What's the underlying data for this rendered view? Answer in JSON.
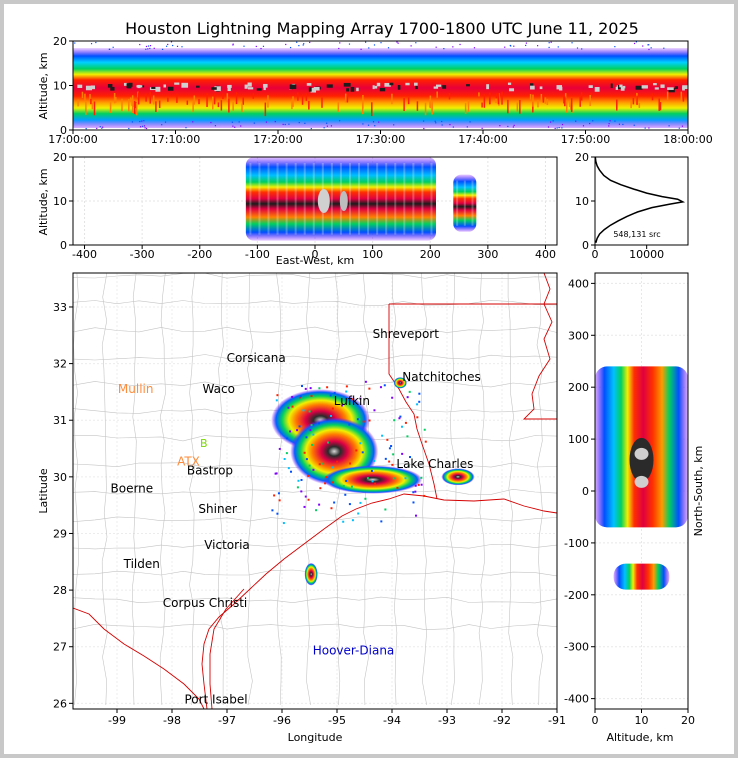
{
  "title": "Houston Lightning Mapping Array 1700-1800 UTC June 11, 2025",
  "colors": {
    "map_state_border": "#d40000",
    "map_county": "#b0b0b0",
    "sites": "#ff8c3c",
    "site_green": "#7ad800",
    "hoover_diana": "#0000cc"
  },
  "chart_data": [
    {
      "type": "heatmap",
      "panel": "altitude-vs-time",
      "ylabel": "Altitude, km",
      "ylim": [
        0,
        20
      ],
      "yticks": [
        "0",
        "10",
        "20"
      ],
      "xlim": [
        "17:00:00",
        "18:00:00"
      ],
      "xticks": [
        "17:00:00",
        "17:10:00",
        "17:20:00",
        "17:30:00",
        "17:40:00",
        "17:50:00",
        "18:00:00"
      ],
      "density_peak_altitude_km": 10
    },
    {
      "type": "heatmap",
      "panel": "altitude-vs-east-west",
      "xlabel": "East-West, km",
      "ylabel": "Altitude, km",
      "xlim": [
        -420,
        420
      ],
      "xticks": [
        "-400",
        "-300",
        "-200",
        "-100",
        "0",
        "100",
        "200",
        "300",
        "400"
      ],
      "ylim": [
        0,
        20
      ],
      "yticks": [
        "0",
        "10",
        "20"
      ],
      "clusters": [
        {
          "x_from": -120,
          "x_to": 210,
          "peak_x": 50,
          "alt_from": 1,
          "alt_to": 20
        },
        {
          "x_from": 240,
          "x_to": 280,
          "peak_x": 260,
          "alt_from": 3,
          "alt_to": 16
        }
      ]
    },
    {
      "type": "line",
      "panel": "altitude-histogram",
      "xlim": [
        0,
        18000
      ],
      "xticks": [
        "0",
        "10000"
      ],
      "ylim": [
        0,
        20
      ],
      "yticks": [
        "0",
        "10",
        "20"
      ],
      "annotation": "548,131 src",
      "points": [
        [
          150,
          0.5
        ],
        [
          400,
          1.5
        ],
        [
          900,
          2.5
        ],
        [
          1800,
          3.5
        ],
        [
          3000,
          4.5
        ],
        [
          4500,
          5.5
        ],
        [
          6200,
          6.5
        ],
        [
          8200,
          7.5
        ],
        [
          11000,
          8.5
        ],
        [
          14500,
          9.3
        ],
        [
          17000,
          9.8
        ],
        [
          16000,
          10.4
        ],
        [
          13000,
          11
        ],
        [
          10000,
          11.8
        ],
        [
          7500,
          12.7
        ],
        [
          5000,
          13.7
        ],
        [
          3000,
          14.7
        ],
        [
          1700,
          15.8
        ],
        [
          900,
          17
        ],
        [
          400,
          18
        ],
        [
          150,
          19
        ],
        [
          60,
          20
        ]
      ]
    },
    {
      "type": "scatter",
      "panel": "plan-view-map",
      "xlabel": "Longitude",
      "ylabel": "Latitude",
      "xlim": [
        -99.8,
        -91
      ],
      "ylim": [
        25.9,
        33.6
      ],
      "xticks": [
        "-99",
        "-98",
        "-97",
        "-96",
        "-95",
        "-94",
        "-93",
        "-92",
        "-91"
      ],
      "yticks": [
        "26",
        "27",
        "28",
        "29",
        "30",
        "31",
        "32",
        "33"
      ],
      "places": [
        {
          "name": "Shreveport",
          "lon": -93.75,
          "lat": 32.52,
          "color": "#000000"
        },
        {
          "name": "Corsicana",
          "lon": -96.47,
          "lat": 32.1,
          "color": "#000000"
        },
        {
          "name": "Natchitoches",
          "lon": -93.1,
          "lat": 31.76,
          "color": "#000000"
        },
        {
          "name": "Mullin",
          "lon": -98.66,
          "lat": 31.55,
          "color": "#ff8c3c"
        },
        {
          "name": "Waco",
          "lon": -97.15,
          "lat": 31.55,
          "color": "#000000"
        },
        {
          "name": "Lufkin",
          "lon": -94.73,
          "lat": 31.34,
          "color": "#000000"
        },
        {
          "name": "ATX",
          "lon": -97.7,
          "lat": 30.27,
          "color": "#ff8c3c"
        },
        {
          "name": "Lake Charles",
          "lon": -93.22,
          "lat": 30.23,
          "color": "#000000"
        },
        {
          "name": "Bastrop",
          "lon": -97.31,
          "lat": 30.11,
          "color": "#000000"
        },
        {
          "name": "Boerne",
          "lon": -98.73,
          "lat": 29.79,
          "color": "#000000"
        },
        {
          "name": "Shiner",
          "lon": -97.17,
          "lat": 29.43,
          "color": "#000000"
        },
        {
          "name": "Victoria",
          "lon": -97.0,
          "lat": 28.8,
          "color": "#000000"
        },
        {
          "name": "Tilden",
          "lon": -98.55,
          "lat": 28.46,
          "color": "#000000"
        },
        {
          "name": "Corpus Christi",
          "lon": -97.4,
          "lat": 27.77,
          "color": "#000000"
        },
        {
          "name": "Hoover-Diana",
          "lon": -94.7,
          "lat": 26.93,
          "color": "#0000cc"
        },
        {
          "name": "Port Isabel",
          "lon": -97.2,
          "lat": 26.07,
          "color": "#000000"
        }
      ],
      "storms": [
        {
          "lon": -95.3,
          "lat": 31.0,
          "rx": 0.9,
          "ry": 0.55
        },
        {
          "lon": -95.05,
          "lat": 30.45,
          "rx": 0.8,
          "ry": 0.6
        },
        {
          "lon": -94.35,
          "lat": 29.95,
          "rx": 0.9,
          "ry": 0.25
        },
        {
          "lon": -92.8,
          "lat": 30.0,
          "rx": 0.3,
          "ry": 0.15
        },
        {
          "lon": -93.85,
          "lat": 31.66,
          "rx": 0.12,
          "ry": 0.1
        },
        {
          "lon": -95.47,
          "lat": 28.28,
          "rx": 0.12,
          "ry": 0.2
        }
      ]
    },
    {
      "type": "heatmap",
      "panel": "north-south-vs-altitude",
      "xlabel": "Altitude, km",
      "ylabel": "North-South, km",
      "xlim": [
        0,
        20
      ],
      "xticks": [
        "0",
        "10",
        "20"
      ],
      "ylim": [
        -420,
        420
      ],
      "yticks": [
        "-400",
        "-300",
        "-200",
        "-100",
        "0",
        "100",
        "200",
        "300",
        "400"
      ],
      "clusters": [
        {
          "y_from": -70,
          "y_to": 240,
          "peak_y": 60,
          "alt_from": 0,
          "alt_to": 20
        },
        {
          "y_from": -190,
          "y_to": -140,
          "peak_y": -165,
          "alt_from": 4,
          "alt_to": 16
        }
      ]
    }
  ]
}
